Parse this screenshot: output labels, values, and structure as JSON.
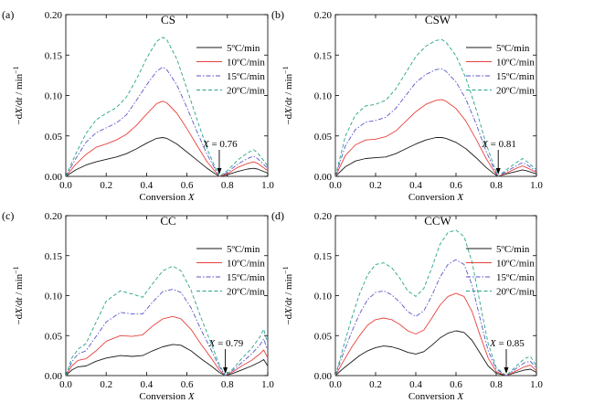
{
  "chart_data": [
    {
      "panel_label": "(a)",
      "title": "CS",
      "type": "line",
      "xlabel": "Conversion X",
      "ylabel": "−dX/dt / min⁻¹",
      "xlim": [
        0.0,
        1.0
      ],
      "ylim": [
        0.0,
        0.2
      ],
      "xticks": [
        "0.0",
        "0.2",
        "0.4",
        "0.6",
        "0.8",
        "1.0"
      ],
      "yticks": [
        "0.00",
        "0.05",
        "0.10",
        "0.15",
        "0.20"
      ],
      "annotation": {
        "text": "X = 0.76",
        "x": 0.76
      },
      "legend_position": "top-right",
      "x": [
        0.0,
        0.05,
        0.1,
        0.15,
        0.2,
        0.25,
        0.3,
        0.35,
        0.4,
        0.45,
        0.48,
        0.5,
        0.55,
        0.6,
        0.65,
        0.7,
        0.74,
        0.76,
        0.8,
        0.85,
        0.9,
        0.93,
        0.95,
        1.0
      ],
      "series": [
        {
          "name": "5ºC/min",
          "values": [
            0.0,
            0.008,
            0.014,
            0.018,
            0.021,
            0.024,
            0.028,
            0.034,
            0.041,
            0.047,
            0.048,
            0.047,
            0.04,
            0.03,
            0.02,
            0.01,
            0.003,
            0.0,
            0.002,
            0.006,
            0.009,
            0.01,
            0.009,
            0.004
          ]
        },
        {
          "name": "10ºC/min",
          "values": [
            0.0,
            0.015,
            0.027,
            0.036,
            0.04,
            0.045,
            0.052,
            0.063,
            0.077,
            0.09,
            0.093,
            0.091,
            0.078,
            0.059,
            0.038,
            0.018,
            0.006,
            0.0,
            0.003,
            0.011,
            0.016,
            0.018,
            0.016,
            0.007
          ]
        },
        {
          "name": "15ºC/min",
          "values": [
            0.0,
            0.022,
            0.042,
            0.054,
            0.06,
            0.066,
            0.076,
            0.094,
            0.113,
            0.13,
            0.135,
            0.132,
            0.113,
            0.085,
            0.055,
            0.027,
            0.009,
            0.0,
            0.005,
            0.015,
            0.022,
            0.025,
            0.022,
            0.01
          ]
        },
        {
          "name": "20ºC/min",
          "values": [
            0.0,
            0.028,
            0.053,
            0.07,
            0.078,
            0.085,
            0.098,
            0.12,
            0.146,
            0.167,
            0.172,
            0.169,
            0.145,
            0.108,
            0.07,
            0.034,
            0.011,
            0.0,
            0.007,
            0.02,
            0.029,
            0.033,
            0.029,
            0.013
          ]
        }
      ]
    },
    {
      "panel_label": "(b)",
      "title": "CSW",
      "type": "line",
      "xlabel": "Conversion X",
      "ylabel": "−dX/dt / min⁻¹",
      "xlim": [
        0.0,
        1.0
      ],
      "ylim": [
        0.0,
        0.2
      ],
      "xticks": [
        "0.0",
        "0.2",
        "0.4",
        "0.6",
        "0.8",
        "1.0"
      ],
      "yticks": [
        "0.00",
        "0.05",
        "0.10",
        "0.15",
        "0.20"
      ],
      "annotation": {
        "text": "X = 0.81",
        "x": 0.81
      },
      "legend_position": "top-right",
      "x": [
        0.0,
        0.05,
        0.1,
        0.15,
        0.2,
        0.25,
        0.3,
        0.35,
        0.4,
        0.45,
        0.5,
        0.53,
        0.55,
        0.6,
        0.65,
        0.7,
        0.75,
        0.79,
        0.81,
        0.85,
        0.9,
        0.93,
        0.95,
        1.0
      ],
      "series": [
        {
          "name": "5ºC/min",
          "values": [
            0.0,
            0.012,
            0.019,
            0.022,
            0.023,
            0.024,
            0.028,
            0.034,
            0.04,
            0.045,
            0.048,
            0.048,
            0.047,
            0.042,
            0.034,
            0.023,
            0.011,
            0.003,
            0.0,
            0.003,
            0.006,
            0.008,
            0.007,
            0.003
          ]
        },
        {
          "name": "10ºC/min",
          "values": [
            0.0,
            0.026,
            0.039,
            0.045,
            0.046,
            0.049,
            0.056,
            0.068,
            0.08,
            0.089,
            0.094,
            0.095,
            0.093,
            0.084,
            0.068,
            0.046,
            0.022,
            0.006,
            0.0,
            0.004,
            0.01,
            0.013,
            0.011,
            0.005
          ]
        },
        {
          "name": "15ºC/min",
          "values": [
            0.0,
            0.038,
            0.058,
            0.067,
            0.069,
            0.073,
            0.084,
            0.1,
            0.116,
            0.126,
            0.132,
            0.133,
            0.13,
            0.117,
            0.095,
            0.065,
            0.031,
            0.009,
            0.0,
            0.006,
            0.013,
            0.017,
            0.015,
            0.006
          ]
        },
        {
          "name": "20ºC/min",
          "values": [
            0.0,
            0.05,
            0.076,
            0.087,
            0.089,
            0.094,
            0.108,
            0.128,
            0.148,
            0.161,
            0.168,
            0.169,
            0.166,
            0.149,
            0.121,
            0.083,
            0.04,
            0.012,
            0.0,
            0.008,
            0.017,
            0.022,
            0.019,
            0.008
          ]
        }
      ]
    },
    {
      "panel_label": "(c)",
      "title": "CC",
      "type": "line",
      "xlabel": "Conversion X",
      "ylabel": "−dX/dt / min⁻¹",
      "xlim": [
        0.0,
        1.0
      ],
      "ylim": [
        0.0,
        0.2
      ],
      "xticks": [
        "0.0",
        "0.2",
        "0.4",
        "0.6",
        "0.8",
        "1.0"
      ],
      "yticks": [
        "0.00",
        "0.05",
        "0.10",
        "0.15",
        "0.20"
      ],
      "annotation": {
        "text": "X = 0.79",
        "x": 0.79
      },
      "legend_position": "top-right",
      "x": [
        0.0,
        0.03,
        0.06,
        0.1,
        0.15,
        0.2,
        0.27,
        0.33,
        0.38,
        0.43,
        0.48,
        0.53,
        0.57,
        0.62,
        0.67,
        0.72,
        0.76,
        0.79,
        0.83,
        0.87,
        0.92,
        0.96,
        0.98,
        1.0
      ],
      "series": [
        {
          "name": "5ºC/min",
          "values": [
            0.0,
            0.007,
            0.011,
            0.012,
            0.018,
            0.022,
            0.025,
            0.024,
            0.025,
            0.031,
            0.036,
            0.039,
            0.038,
            0.031,
            0.021,
            0.012,
            0.004,
            0.0,
            0.003,
            0.007,
            0.012,
            0.017,
            0.02,
            0.012
          ]
        },
        {
          "name": "10ºC/min",
          "values": [
            0.0,
            0.012,
            0.019,
            0.021,
            0.031,
            0.043,
            0.05,
            0.049,
            0.051,
            0.062,
            0.071,
            0.074,
            0.071,
            0.058,
            0.039,
            0.022,
            0.007,
            0.0,
            0.005,
            0.012,
            0.019,
            0.027,
            0.032,
            0.022
          ]
        },
        {
          "name": "15ºC/min",
          "values": [
            0.0,
            0.017,
            0.027,
            0.031,
            0.049,
            0.067,
            0.079,
            0.077,
            0.077,
            0.092,
            0.105,
            0.108,
            0.104,
            0.085,
            0.057,
            0.032,
            0.011,
            0.0,
            0.007,
            0.016,
            0.027,
            0.038,
            0.046,
            0.031
          ]
        },
        {
          "name": "20ºC/min",
          "values": [
            0.0,
            0.022,
            0.033,
            0.04,
            0.067,
            0.093,
            0.106,
            0.102,
            0.098,
            0.115,
            0.131,
            0.137,
            0.131,
            0.107,
            0.072,
            0.04,
            0.014,
            0.0,
            0.009,
            0.021,
            0.034,
            0.048,
            0.058,
            0.04
          ]
        }
      ]
    },
    {
      "panel_label": "(d)",
      "title": "CCW",
      "type": "line",
      "xlabel": "Conversion X",
      "ylabel": "−dX/dt / min⁻¹",
      "xlim": [
        0.0,
        1.0
      ],
      "ylim": [
        0.0,
        0.2
      ],
      "xticks": [
        "0.0",
        "0.2",
        "0.4",
        "0.6",
        "0.8",
        "1.0"
      ],
      "yticks": [
        "0.00",
        "0.05",
        "0.10",
        "0.15",
        "0.20"
      ],
      "annotation": {
        "text": "X = 0.85",
        "x": 0.85
      },
      "legend_position": "top-right",
      "x": [
        0.0,
        0.04,
        0.08,
        0.12,
        0.16,
        0.2,
        0.24,
        0.28,
        0.32,
        0.36,
        0.4,
        0.44,
        0.48,
        0.52,
        0.56,
        0.6,
        0.64,
        0.68,
        0.72,
        0.76,
        0.8,
        0.85,
        0.9,
        0.94,
        0.97,
        1.0
      ],
      "series": [
        {
          "name": "5ºC/min",
          "values": [
            0.0,
            0.009,
            0.017,
            0.025,
            0.031,
            0.035,
            0.037,
            0.036,
            0.033,
            0.029,
            0.027,
            0.03,
            0.038,
            0.047,
            0.053,
            0.056,
            0.054,
            0.044,
            0.028,
            0.012,
            0.003,
            0.0,
            0.004,
            0.007,
            0.008,
            0.004
          ]
        },
        {
          "name": "10ºC/min",
          "values": [
            0.0,
            0.018,
            0.035,
            0.05,
            0.063,
            0.07,
            0.072,
            0.07,
            0.064,
            0.056,
            0.052,
            0.057,
            0.072,
            0.088,
            0.099,
            0.103,
            0.099,
            0.08,
            0.05,
            0.022,
            0.005,
            0.0,
            0.006,
            0.011,
            0.013,
            0.006
          ]
        },
        {
          "name": "15ºC/min",
          "values": [
            0.0,
            0.028,
            0.054,
            0.077,
            0.095,
            0.104,
            0.106,
            0.101,
            0.092,
            0.08,
            0.074,
            0.081,
            0.1,
            0.123,
            0.139,
            0.145,
            0.139,
            0.113,
            0.071,
            0.031,
            0.008,
            0.0,
            0.009,
            0.016,
            0.018,
            0.009
          ]
        },
        {
          "name": "20ºC/min",
          "values": [
            0.0,
            0.036,
            0.071,
            0.102,
            0.126,
            0.139,
            0.141,
            0.135,
            0.122,
            0.106,
            0.099,
            0.109,
            0.135,
            0.164,
            0.179,
            0.182,
            0.174,
            0.142,
            0.09,
            0.04,
            0.01,
            0.0,
            0.012,
            0.021,
            0.024,
            0.012
          ]
        }
      ]
    }
  ],
  "colors": {
    "5ºC/min": "#1a1a1a",
    "10ºC/min": "#e8423c",
    "15ºC/min": "#5a56c8",
    "20ºC/min": "#27a38a"
  },
  "dash_styles": {
    "5ºC/min": "solid",
    "10ºC/min": "solid",
    "15ºC/min": "dash-dot",
    "20ºC/min": "dashed"
  }
}
